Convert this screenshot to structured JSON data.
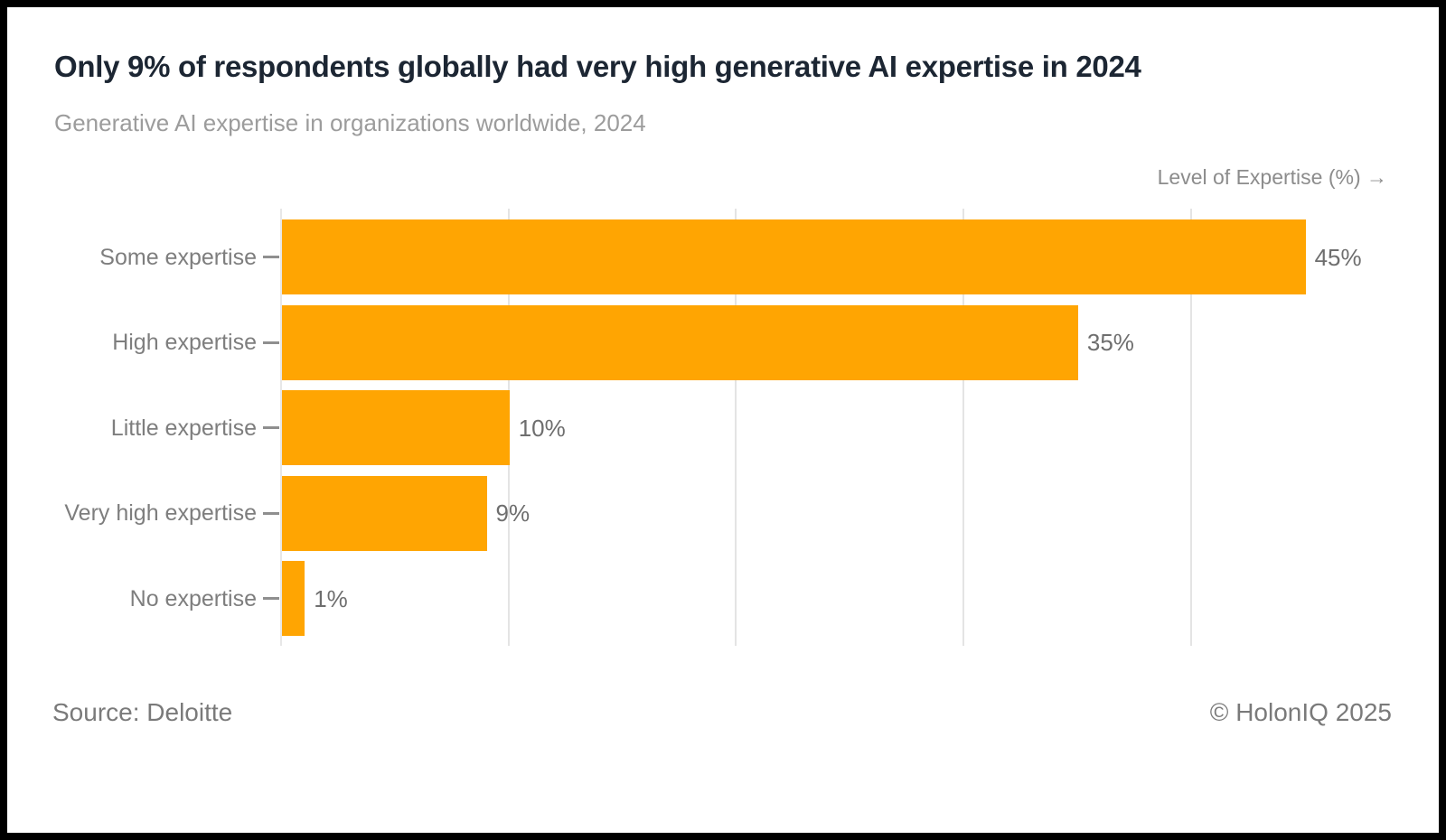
{
  "header": {
    "title": "Only 9% of respondents globally had very high generative AI expertise in 2024",
    "subtitle": "Generative AI expertise in organizations worldwide, 2024"
  },
  "chart_data": {
    "type": "bar",
    "orientation": "horizontal",
    "title": "Only 9% of respondents globally had very high generative AI expertise in 2024",
    "subtitle": "Generative AI expertise in organizations worldwide, 2024",
    "axis_title": "Level of Expertise (%) →",
    "categories": [
      "Some expertise",
      "High expertise",
      "Little expertise",
      "Very high expertise",
      "No expertise"
    ],
    "values": [
      45,
      35,
      10,
      9,
      1
    ],
    "value_labels": [
      "45%",
      "35%",
      "10%",
      "9%",
      "1%"
    ],
    "xlabel": "Level of Expertise (%)",
    "ylabel": "",
    "xlim": [
      0,
      45.61
    ],
    "grid_ticks": [
      10,
      20,
      30,
      40
    ],
    "grid": "vertical-only",
    "legend": "none",
    "bar_color": "#FFA502"
  },
  "footer": {
    "source": "Source: Deloitte",
    "copyright": "© HolonIQ 2025"
  },
  "colors": {
    "bar": "#FFA502",
    "title_text": "#1C2633",
    "muted_text": "#8C8C8C",
    "gridline": "#E4E4E4",
    "background": "#FFFFFF",
    "frame": "#000000"
  }
}
